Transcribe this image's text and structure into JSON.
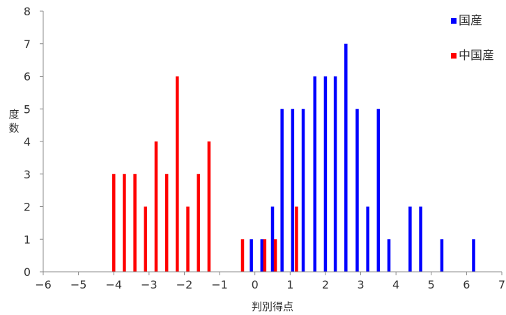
{
  "chart_data": {
    "type": "bar",
    "xlabel": "判別得点",
    "ylabel": "度数",
    "xlim": [
      -6,
      7
    ],
    "ylim": [
      0,
      8
    ],
    "x_ticks": [
      -6,
      -5,
      -4,
      -3,
      -2,
      -1,
      0,
      1,
      2,
      3,
      4,
      5,
      6,
      7
    ],
    "y_ticks": [
      0,
      1,
      2,
      3,
      4,
      5,
      6,
      7,
      8
    ],
    "legend_position": "top-right",
    "grid": false,
    "series": [
      {
        "name": "国産",
        "color": "#0000ff",
        "points": [
          {
            "x": -0.1,
            "y": 1
          },
          {
            "x": 0.2,
            "y": 1
          },
          {
            "x": 0.5,
            "y": 2
          },
          {
            "x": 0.77,
            "y": 5
          },
          {
            "x": 1.07,
            "y": 5
          },
          {
            "x": 1.37,
            "y": 5
          },
          {
            "x": 1.7,
            "y": 6
          },
          {
            "x": 2.0,
            "y": 6
          },
          {
            "x": 2.28,
            "y": 6
          },
          {
            "x": 2.58,
            "y": 7
          },
          {
            "x": 2.9,
            "y": 5
          },
          {
            "x": 3.2,
            "y": 2
          },
          {
            "x": 3.5,
            "y": 5
          },
          {
            "x": 3.8,
            "y": 1
          },
          {
            "x": 4.4,
            "y": 2
          },
          {
            "x": 4.7,
            "y": 2
          },
          {
            "x": 5.3,
            "y": 1
          },
          {
            "x": 6.2,
            "y": 1
          }
        ]
      },
      {
        "name": "中国産",
        "color": "#ff0000",
        "points": [
          {
            "x": -4.0,
            "y": 3
          },
          {
            "x": -3.7,
            "y": 3
          },
          {
            "x": -3.4,
            "y": 3
          },
          {
            "x": -3.1,
            "y": 2
          },
          {
            "x": -2.8,
            "y": 4
          },
          {
            "x": -2.5,
            "y": 3
          },
          {
            "x": -2.2,
            "y": 6
          },
          {
            "x": -1.9,
            "y": 2
          },
          {
            "x": -1.6,
            "y": 3
          },
          {
            "x": -1.3,
            "y": 4
          },
          {
            "x": -0.35,
            "y": 1
          },
          {
            "x": 0.28,
            "y": 1
          },
          {
            "x": 0.58,
            "y": 1
          },
          {
            "x": 1.18,
            "y": 2
          }
        ]
      }
    ]
  }
}
